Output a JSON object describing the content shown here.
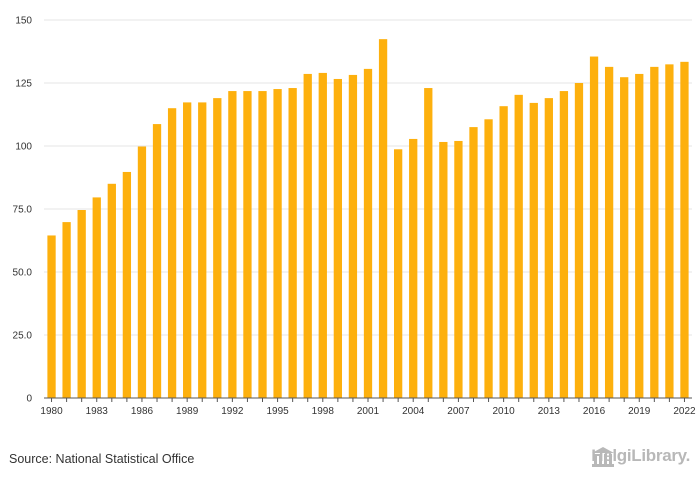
{
  "chart_data": {
    "type": "bar",
    "title": "",
    "xlabel": "",
    "ylabel": "",
    "ylim": [
      0,
      150
    ],
    "y_ticks": [
      "0",
      "25.0",
      "50.0",
      "75.0",
      "100",
      "125",
      "150"
    ],
    "y_tick_values": [
      0,
      25,
      50,
      75,
      100,
      125,
      150
    ],
    "x_tick_labels": [
      "1980",
      "1983",
      "1986",
      "1989",
      "1992",
      "1995",
      "1998",
      "2001",
      "2004",
      "2007",
      "2010",
      "2013",
      "2016",
      "2019",
      "2022"
    ],
    "categories": [
      "1980",
      "1981",
      "1982",
      "1983",
      "1984",
      "1985",
      "1986",
      "1987",
      "1988",
      "1989",
      "1990",
      "1991",
      "1992",
      "1993",
      "1994",
      "1995",
      "1996",
      "1997",
      "1998",
      "1999",
      "2000",
      "2001",
      "2002",
      "2003",
      "2004",
      "2005",
      "2006",
      "2007",
      "2008",
      "2009",
      "2010",
      "2011",
      "2012",
      "2013",
      "2014",
      "2015",
      "2016",
      "2017",
      "2018",
      "2019",
      "2020",
      "2021",
      "2022"
    ],
    "values": [
      64.5,
      69.8,
      74.6,
      79.6,
      85.0,
      89.7,
      99.8,
      108.7,
      115.0,
      117.3,
      117.3,
      119.0,
      121.8,
      121.8,
      121.8,
      122.6,
      123.0,
      128.6,
      129.0,
      126.6,
      128.2,
      130.6,
      142.4,
      98.7,
      102.8,
      123.0,
      101.6,
      102.0,
      107.5,
      110.6,
      115.8,
      120.3,
      117.1,
      119.0,
      121.8,
      125.0,
      135.5,
      131.4,
      127.3,
      128.6,
      131.4,
      132.4,
      133.4
    ],
    "bar_color": "#fdb00d",
    "grid": true,
    "legend": "none"
  },
  "footer": {
    "source": "Source: National Statistical Office",
    "brand": "HelgiLibrary."
  },
  "colors": {
    "bar": "#fdb00d",
    "grid": "#e6e6e6",
    "axis": "#333333",
    "brand": "#b8b8b8"
  }
}
